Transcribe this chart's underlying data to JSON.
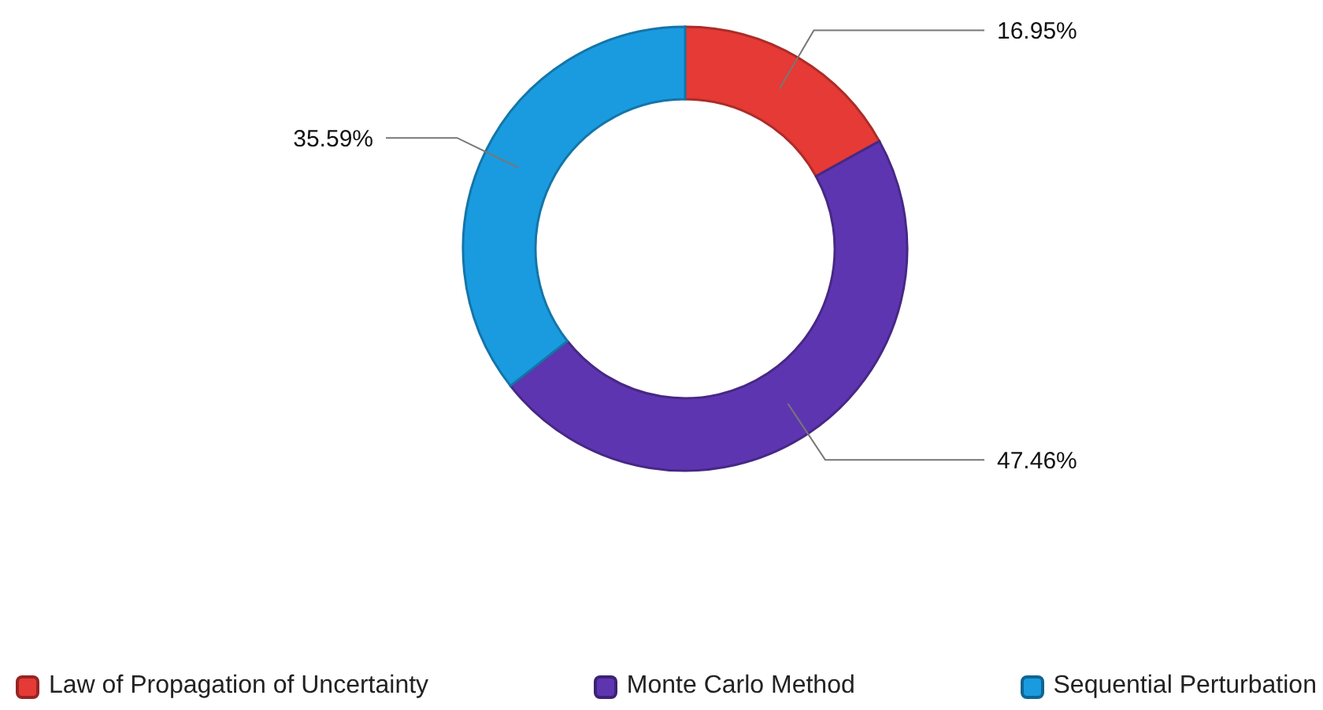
{
  "chart_data": {
    "type": "donut",
    "categories": [
      "Law of Propagation of Uncertainty",
      "Monte Carlo Method",
      "Sequential Perturbation"
    ],
    "values": [
      16.95,
      47.46,
      35.59
    ],
    "colors": [
      "#e53a35",
      "#5e35b1",
      "#1a9be0"
    ],
    "value_labels": [
      "16.95%",
      "47.46%",
      "35.59%"
    ],
    "legend": "bottom"
  }
}
